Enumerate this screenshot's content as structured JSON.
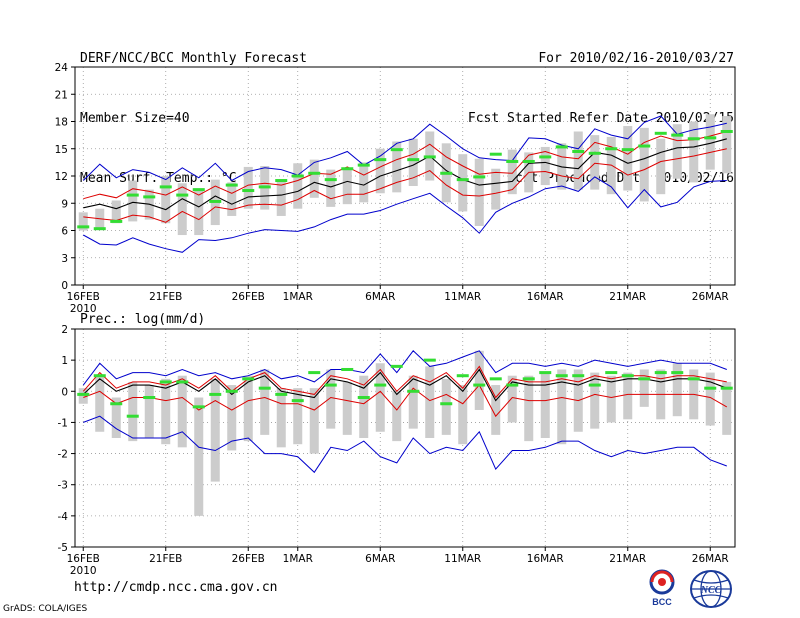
{
  "header": {
    "line1_left": "DERF/NCC/BCC Monthly Forecast",
    "line2_left": "Member Size=40",
    "line3_left": "Mean Surf. Temp.: °C",
    "line1_right": "For 2010/02/16-2010/03/27",
    "line2_right": "Fcst Started Refer Date 2010/02/15",
    "line3_right": "Fcst Produced Date 2010/02/16"
  },
  "footer": {
    "url": "http://cmdp.ncc.cma.gov.cn",
    "credit": "GrADS: COLA/IGES"
  },
  "logos": {
    "bcc_text": "BCC",
    "ncc_text": "NCC"
  },
  "colors": {
    "ensemble_range": "#0000cc",
    "percentile_band": "#dd0000",
    "ensemble_mean": "#000000",
    "green_marker": "#33dd33",
    "box": "#cccccc"
  },
  "chart_data": [
    {
      "id": "temperature",
      "type": "line",
      "title": "Mean Surf. Temp.: °C",
      "ylim": [
        0,
        24
      ],
      "yticks": [
        0,
        3,
        6,
        9,
        12,
        15,
        18,
        21,
        24
      ],
      "xlim": [
        0.5,
        40.5
      ],
      "xtick_days": [
        1,
        6,
        11,
        14,
        19,
        24,
        29,
        34,
        39
      ],
      "xtick_labels": [
        "16FEB",
        "21FEB",
        "26FEB",
        "1MAR",
        "6MAR",
        "11MAR",
        "16MAR",
        "21MAR",
        "26MAR"
      ],
      "year_label": "2010",
      "series": [
        {
          "name": "ensemble max",
          "color": "#0000cc",
          "values": [
            11.5,
            13.3,
            11.8,
            12.7,
            12.4,
            11.6,
            12.9,
            11.8,
            13.4,
            11.5,
            12.5,
            12.9,
            12.7,
            12.1,
            13.5,
            14.0,
            14.7,
            13.2,
            14.2,
            15.6,
            16.1,
            17.7,
            16.4,
            15.0,
            14.0,
            13.8,
            13.7,
            16.2,
            16.1,
            15.4,
            15.0,
            17.2,
            16.5,
            16.1,
            17.9,
            18.6,
            16.6,
            17.1,
            17.4,
            17.8
          ]
        },
        {
          "name": "p90",
          "color": "#dd0000",
          "values": [
            9.5,
            10.0,
            9.6,
            10.6,
            10.3,
            9.9,
            10.8,
            9.9,
            10.9,
            10.1,
            11.0,
            11.2,
            11.0,
            11.5,
            12.3,
            12.2,
            13.0,
            12.1,
            13.0,
            13.8,
            14.4,
            15.5,
            14.1,
            13.1,
            12.2,
            12.4,
            12.3,
            14.3,
            14.7,
            14.1,
            13.9,
            15.7,
            15.2,
            14.4,
            15.7,
            16.4,
            15.9,
            16.0,
            16.4,
            16.9
          ]
        },
        {
          "name": "ensemble mean",
          "color": "#000000",
          "values": [
            8.5,
            8.9,
            8.4,
            9.1,
            8.9,
            8.3,
            9.5,
            8.6,
            9.8,
            8.9,
            9.7,
            9.8,
            9.9,
            10.3,
            11.3,
            10.8,
            11.4,
            11.0,
            12.0,
            12.6,
            13.2,
            14.2,
            12.6,
            11.6,
            11.0,
            11.2,
            11.4,
            13.4,
            13.5,
            13.0,
            12.8,
            14.6,
            14.3,
            13.4,
            13.9,
            14.6,
            15.1,
            15.2,
            15.6,
            16.1
          ]
        },
        {
          "name": "p10",
          "color": "#dd0000",
          "values": [
            7.5,
            7.3,
            7.1,
            7.7,
            7.5,
            6.9,
            8.1,
            7.2,
            8.6,
            8.3,
            8.8,
            8.9,
            8.8,
            9.4,
            10.4,
            9.5,
            10.0,
            10.0,
            10.6,
            11.3,
            11.8,
            12.6,
            11.0,
            9.9,
            9.8,
            10.1,
            10.5,
            12.4,
            12.5,
            12.0,
            11.7,
            13.4,
            13.2,
            12.1,
            12.7,
            13.6,
            13.9,
            14.2,
            14.6,
            15.0
          ]
        },
        {
          "name": "ensemble min",
          "color": "#0000cc",
          "values": [
            5.5,
            4.5,
            4.4,
            5.2,
            4.5,
            4.0,
            3.6,
            5.0,
            4.9,
            5.2,
            5.7,
            6.1,
            6.0,
            5.9,
            6.4,
            7.2,
            7.8,
            7.8,
            8.2,
            8.9,
            9.5,
            10.1,
            8.7,
            7.4,
            5.7,
            8.0,
            9.0,
            9.7,
            10.6,
            10.9,
            10.3,
            11.9,
            10.8,
            8.5,
            10.5,
            8.6,
            9.1,
            10.8,
            11.4,
            11.5
          ]
        },
        {
          "name": "green markers",
          "color": "#33dd33",
          "values": [
            6.4,
            6.2,
            7.0,
            9.9,
            9.7,
            10.8,
            9.9,
            10.5,
            9.2,
            11.0,
            10.4,
            10.8,
            11.5,
            12.0,
            12.3,
            11.6,
            12.8,
            13.2,
            13.8,
            14.9,
            13.8,
            14.1,
            12.3,
            11.6,
            11.9,
            14.4,
            13.6,
            13.6,
            14.1,
            15.2,
            14.7,
            14.5,
            15.0,
            14.9,
            15.3,
            16.7,
            16.5,
            16.1,
            16.2,
            16.9
          ]
        }
      ],
      "boxes": [
        {
          "low": 6.0,
          "high": 8.0
        },
        {
          "low": 6.3,
          "high": 8.4
        },
        {
          "low": 6.8,
          "high": 9.3
        },
        {
          "low": 7.0,
          "high": 11.5
        },
        {
          "low": 7.2,
          "high": 10.5
        },
        {
          "low": 6.8,
          "high": 12.0
        },
        {
          "low": 5.5,
          "high": 11.2
        },
        {
          "low": 5.5,
          "high": 10.6
        },
        {
          "low": 6.6,
          "high": 11.6
        },
        {
          "low": 7.6,
          "high": 11.3
        },
        {
          "low": 8.4,
          "high": 13.0
        },
        {
          "low": 8.3,
          "high": 13.1
        },
        {
          "low": 7.6,
          "high": 11.5
        },
        {
          "low": 8.4,
          "high": 13.4
        },
        {
          "low": 9.6,
          "high": 13.8
        },
        {
          "low": 8.6,
          "high": 12.7
        },
        {
          "low": 8.9,
          "high": 12.9
        },
        {
          "low": 9.1,
          "high": 13.5
        },
        {
          "low": 10.1,
          "high": 15.0
        },
        {
          "low": 10.2,
          "high": 15.8
        },
        {
          "low": 10.9,
          "high": 16.1
        },
        {
          "low": 11.5,
          "high": 16.9
        },
        {
          "low": 9.1,
          "high": 15.6
        },
        {
          "low": 8.1,
          "high": 14.4
        },
        {
          "low": 6.5,
          "high": 13.9
        },
        {
          "low": 8.3,
          "high": 12.8
        },
        {
          "low": 10.0,
          "high": 14.9
        },
        {
          "low": 10.2,
          "high": 14.6
        },
        {
          "low": 11.0,
          "high": 15.2
        },
        {
          "low": 10.5,
          "high": 15.6
        },
        {
          "low": 10.5,
          "high": 16.9
        },
        {
          "low": 10.5,
          "high": 16.5
        },
        {
          "low": 10.0,
          "high": 16.3
        },
        {
          "low": 10.4,
          "high": 17.5
        },
        {
          "low": 9.2,
          "high": 17.3
        },
        {
          "low": 10.0,
          "high": 16.1
        },
        {
          "low": 11.7,
          "high": 17.7
        },
        {
          "low": 11.3,
          "high": 18.0
        },
        {
          "low": 12.7,
          "high": 18.8
        },
        {
          "low": 12.3,
          "high": 18.6
        }
      ]
    },
    {
      "id": "precipitation",
      "type": "line",
      "title": "Prec.: log(mm/d)",
      "ylim": [
        -5,
        2
      ],
      "yticks": [
        -5,
        -4,
        -3,
        -2,
        -1,
        0,
        1,
        2
      ],
      "xlim": [
        0.5,
        40.5
      ],
      "xtick_days": [
        1,
        6,
        11,
        14,
        19,
        24,
        29,
        34,
        39
      ],
      "xtick_labels": [
        "16FEB",
        "21FEB",
        "26FEB",
        "1MAR",
        "6MAR",
        "11MAR",
        "16MAR",
        "21MAR",
        "26MAR"
      ],
      "year_label": "2010",
      "series": [
        {
          "name": "ensemble max",
          "color": "#0000cc",
          "values": [
            0.2,
            0.9,
            0.4,
            0.6,
            0.6,
            0.5,
            0.7,
            0.5,
            0.6,
            0.4,
            0.5,
            0.7,
            0.4,
            0.5,
            0.3,
            0.7,
            0.7,
            0.6,
            1.2,
            0.6,
            1.3,
            0.8,
            0.9,
            1.1,
            1.3,
            0.6,
            0.9,
            0.9,
            0.8,
            0.9,
            0.8,
            1.0,
            0.9,
            0.8,
            0.9,
            1.0,
            0.9,
            0.9,
            0.9,
            0.7
          ]
        },
        {
          "name": "p90",
          "color": "#dd0000",
          "values": [
            0.0,
            0.6,
            0.1,
            0.3,
            0.3,
            0.2,
            0.4,
            0.1,
            0.5,
            0.0,
            0.4,
            0.6,
            0.1,
            0.0,
            -0.1,
            0.5,
            0.4,
            0.2,
            0.7,
            0.0,
            0.5,
            0.3,
            0.6,
            0.1,
            0.8,
            -0.2,
            0.4,
            0.3,
            0.3,
            0.4,
            0.3,
            0.5,
            0.4,
            0.5,
            0.5,
            0.4,
            0.5,
            0.5,
            0.4,
            0.3
          ]
        },
        {
          "name": "ensemble mean",
          "color": "#000000",
          "values": [
            -0.1,
            0.4,
            0.0,
            0.2,
            0.2,
            0.1,
            0.3,
            0.0,
            0.4,
            -0.1,
            0.3,
            0.5,
            0.0,
            -0.1,
            -0.2,
            0.4,
            0.3,
            0.1,
            0.6,
            -0.1,
            0.4,
            0.2,
            0.5,
            0.0,
            0.7,
            -0.3,
            0.3,
            0.2,
            0.2,
            0.3,
            0.2,
            0.4,
            0.3,
            0.4,
            0.4,
            0.3,
            0.4,
            0.4,
            0.3,
            0.1
          ]
        },
        {
          "name": "p10",
          "color": "#dd0000",
          "values": [
            -0.2,
            0.0,
            -0.4,
            -0.2,
            -0.2,
            -0.3,
            -0.2,
            -0.6,
            -0.3,
            -0.6,
            -0.3,
            -0.2,
            -0.4,
            -0.4,
            -0.6,
            -0.2,
            -0.3,
            -0.4,
            0.0,
            -0.6,
            0.1,
            -0.3,
            -0.1,
            -0.4,
            0.2,
            -0.8,
            -0.2,
            -0.3,
            -0.3,
            -0.2,
            -0.3,
            -0.1,
            -0.2,
            -0.1,
            -0.1,
            -0.1,
            -0.1,
            -0.1,
            -0.2,
            -0.5
          ]
        },
        {
          "name": "ensemble min",
          "color": "#0000cc",
          "values": [
            -1.0,
            -0.8,
            -1.2,
            -1.5,
            -1.5,
            -1.5,
            -1.3,
            -1.8,
            -1.9,
            -1.6,
            -1.5,
            -2.0,
            -2.0,
            -2.1,
            -2.6,
            -1.8,
            -1.9,
            -1.6,
            -2.1,
            -2.3,
            -1.5,
            -2.0,
            -1.8,
            -1.9,
            -1.3,
            -2.5,
            -1.9,
            -1.9,
            -1.8,
            -1.6,
            -1.6,
            -1.9,
            -2.1,
            -1.9,
            -2.0,
            -1.9,
            -1.8,
            -1.8,
            -2.2,
            -2.4
          ]
        },
        {
          "name": "green markers",
          "color": "#33dd33",
          "values": [
            -0.1,
            0.5,
            -0.4,
            -0.8,
            -0.2,
            0.3,
            0.3,
            -0.5,
            -0.1,
            0.0,
            0.4,
            0.1,
            -0.1,
            -0.3,
            0.6,
            0.2,
            0.7,
            -0.2,
            0.2,
            0.8,
            0.0,
            1.0,
            -0.4,
            0.5,
            0.2,
            0.4,
            0.2,
            0.4,
            0.6,
            0.5,
            0.5,
            0.2,
            0.6,
            0.5,
            0.4,
            0.6,
            0.6,
            0.4,
            0.1,
            0.1
          ]
        }
      ],
      "boxes": [
        {
          "low": -0.4,
          "high": 0.1
        },
        {
          "low": -1.3,
          "high": 0.5
        },
        {
          "low": -1.5,
          "high": -0.2
        },
        {
          "low": -1.6,
          "high": 0.3
        },
        {
          "low": -1.5,
          "high": 0.2
        },
        {
          "low": -1.7,
          "high": 0.4
        },
        {
          "low": -1.8,
          "high": 0.5
        },
        {
          "low": -4.0,
          "high": -0.2
        },
        {
          "low": -2.9,
          "high": 0.4
        },
        {
          "low": -1.9,
          "high": 0.2
        },
        {
          "low": -1.6,
          "high": 0.5
        },
        {
          "low": -1.4,
          "high": 0.7
        },
        {
          "low": -1.8,
          "high": 0.1
        },
        {
          "low": -1.7,
          "high": 0.1
        },
        {
          "low": -2.0,
          "high": 0.1
        },
        {
          "low": -1.2,
          "high": 0.7
        },
        {
          "low": -1.4,
          "high": 0.3
        },
        {
          "low": -1.5,
          "high": 0.5
        },
        {
          "low": -1.3,
          "high": 0.9
        },
        {
          "low": -1.6,
          "high": 0.0
        },
        {
          "low": -1.2,
          "high": 0.5
        },
        {
          "low": -1.5,
          "high": 0.8
        },
        {
          "low": -1.4,
          "high": 0.4
        },
        {
          "low": -1.7,
          "high": 0.2
        },
        {
          "low": -0.6,
          "high": 1.3
        },
        {
          "low": -1.4,
          "high": 0.2
        },
        {
          "low": -1.0,
          "high": 0.5
        },
        {
          "low": -1.6,
          "high": 0.5
        },
        {
          "low": -1.5,
          "high": 0.6
        },
        {
          "low": -1.7,
          "high": 0.7
        },
        {
          "low": -1.3,
          "high": 0.7
        },
        {
          "low": -1.2,
          "high": 0.6
        },
        {
          "low": -1.0,
          "high": 0.5
        },
        {
          "low": -0.9,
          "high": 0.6
        },
        {
          "low": -0.5,
          "high": 0.7
        },
        {
          "low": -0.9,
          "high": 0.7
        },
        {
          "low": -0.8,
          "high": 0.9
        },
        {
          "low": -0.9,
          "high": 0.7
        },
        {
          "low": -1.1,
          "high": 0.6
        },
        {
          "low": -1.4,
          "high": 0.3
        }
      ]
    }
  ]
}
